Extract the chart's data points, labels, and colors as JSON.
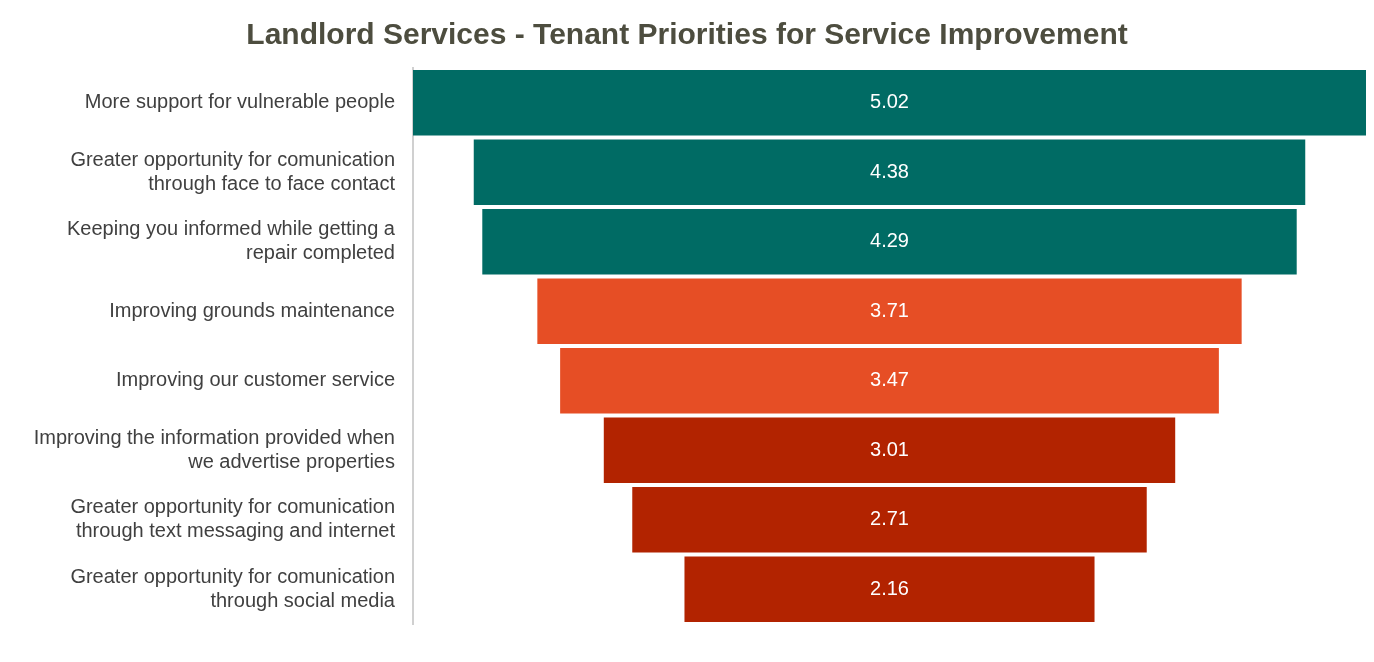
{
  "chart_data": {
    "type": "other",
    "title": "Landlord Services - Tenant Priorities for Service Improvement",
    "categories": [
      "More support for vulnerable people",
      "Greater opportunity for comunication through face to face contact",
      "Keeping you informed while getting a repair completed",
      "Improving grounds maintenance",
      "Improving our customer service",
      "Improving the information provided when we advertise properties",
      "Greater opportunity for comunication through text messaging and internet",
      "Greater opportunity for comunication through social media"
    ],
    "values": [
      5.02,
      4.38,
      4.29,
      3.71,
      3.47,
      3.01,
      2.71,
      2.16
    ],
    "colors": [
      "#006b64",
      "#006b64",
      "#006b64",
      "#e64e25",
      "#e64e25",
      "#b22300",
      "#b22300",
      "#b22300"
    ],
    "data_labels": true
  }
}
